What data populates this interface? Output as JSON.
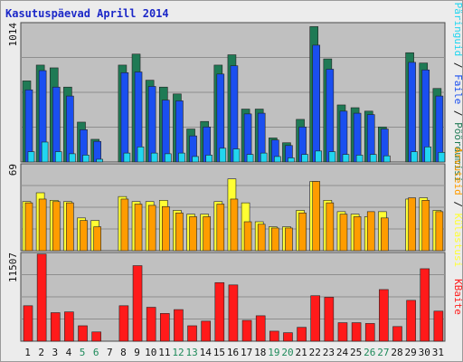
{
  "title": "Kasutuspäevad Aprill 2014",
  "colors": {
    "panel_bg": "#c0c0c0",
    "frame_bg": "#ececec",
    "visits_top": "#1f7a55",
    "pages": "#1a4ff0",
    "files": "#21d6f0",
    "visits": "#ffff33",
    "sites": "#ff9c00",
    "kbytes": "#ff1a1a",
    "weekday_text": "#111111",
    "weekend_text": "#1d8a5a"
  },
  "chart_data": [
    {
      "type": "bar",
      "title": "Kasutuspäevad Aprill 2014",
      "categories": [
        "1",
        "2",
        "3",
        "4",
        "5",
        "6",
        "7",
        "8",
        "9",
        "10",
        "11",
        "12",
        "13",
        "14",
        "15",
        "16",
        "17",
        "18",
        "19",
        "20",
        "21",
        "22",
        "23",
        "24",
        "25",
        "26",
        "27",
        "28",
        "29",
        "30",
        "31"
      ],
      "weekend_days": [
        "5",
        "6",
        "12",
        "13",
        "19",
        "20",
        "26",
        "27"
      ],
      "ymax_label": "1014",
      "ylim": [
        0,
        1014
      ],
      "side_labels": [
        "Päringuid",
        "Faile",
        "Pöördumisi"
      ],
      "series": [
        {
          "name": "Pöördumisi",
          "values": [
            590,
            705,
            685,
            545,
            290,
            165,
            0,
            705,
            785,
            595,
            545,
            495,
            240,
            295,
            705,
            780,
            385,
            385,
            175,
            140,
            310,
            985,
            750,
            415,
            395,
            370,
            255,
            0,
            795,
            720,
            535
          ]
        },
        {
          "name": "Faile",
          "values": [
            525,
            665,
            545,
            480,
            235,
            150,
            0,
            650,
            655,
            550,
            450,
            445,
            190,
            255,
            640,
            700,
            350,
            355,
            160,
            120,
            255,
            850,
            675,
            370,
            355,
            345,
            240,
            0,
            725,
            670,
            480
          ]
        },
        {
          "name": "Päringuid",
          "values": [
            75,
            145,
            75,
            60,
            50,
            20,
            0,
            65,
            110,
            65,
            60,
            65,
            40,
            50,
            100,
            95,
            55,
            65,
            40,
            30,
            55,
            80,
            75,
            55,
            50,
            55,
            45,
            0,
            75,
            110,
            70
          ]
        }
      ]
    },
    {
      "type": "bar",
      "ymax_label": "69",
      "ylim": [
        0,
        69
      ],
      "side_labels": [
        "Arvuteid",
        "Külastusi"
      ],
      "series": [
        {
          "name": "Külastusi",
          "values": [
            39,
            46,
            40,
            39,
            26,
            24,
            0,
            43,
            39,
            39,
            40,
            32,
            29,
            29,
            39,
            57,
            38,
            23,
            19,
            19,
            32,
            55,
            40,
            31,
            29,
            27,
            31,
            0,
            41,
            42,
            32
          ]
        },
        {
          "name": "Arvuteid",
          "values": [
            38,
            41,
            39,
            38,
            24,
            19,
            0,
            41,
            37,
            36,
            35,
            30,
            27,
            27,
            37,
            41,
            23,
            21,
            18,
            18,
            30,
            55,
            38,
            29,
            27,
            31,
            26,
            0,
            42,
            40,
            31
          ]
        }
      ]
    },
    {
      "type": "bar",
      "ymax_label": "11507",
      "ylim": [
        0,
        11507
      ],
      "side_labels": [
        "KBaite"
      ],
      "series": [
        {
          "name": "KBaite",
          "values": [
            4600,
            11300,
            3700,
            3800,
            2000,
            1200,
            0,
            4600,
            9800,
            4400,
            3600,
            4100,
            2000,
            2600,
            7600,
            7300,
            2700,
            3300,
            1300,
            1100,
            1800,
            5900,
            5700,
            2400,
            2400,
            2300,
            6700,
            1900,
            5300,
            9400,
            3900
          ]
        }
      ]
    }
  ]
}
